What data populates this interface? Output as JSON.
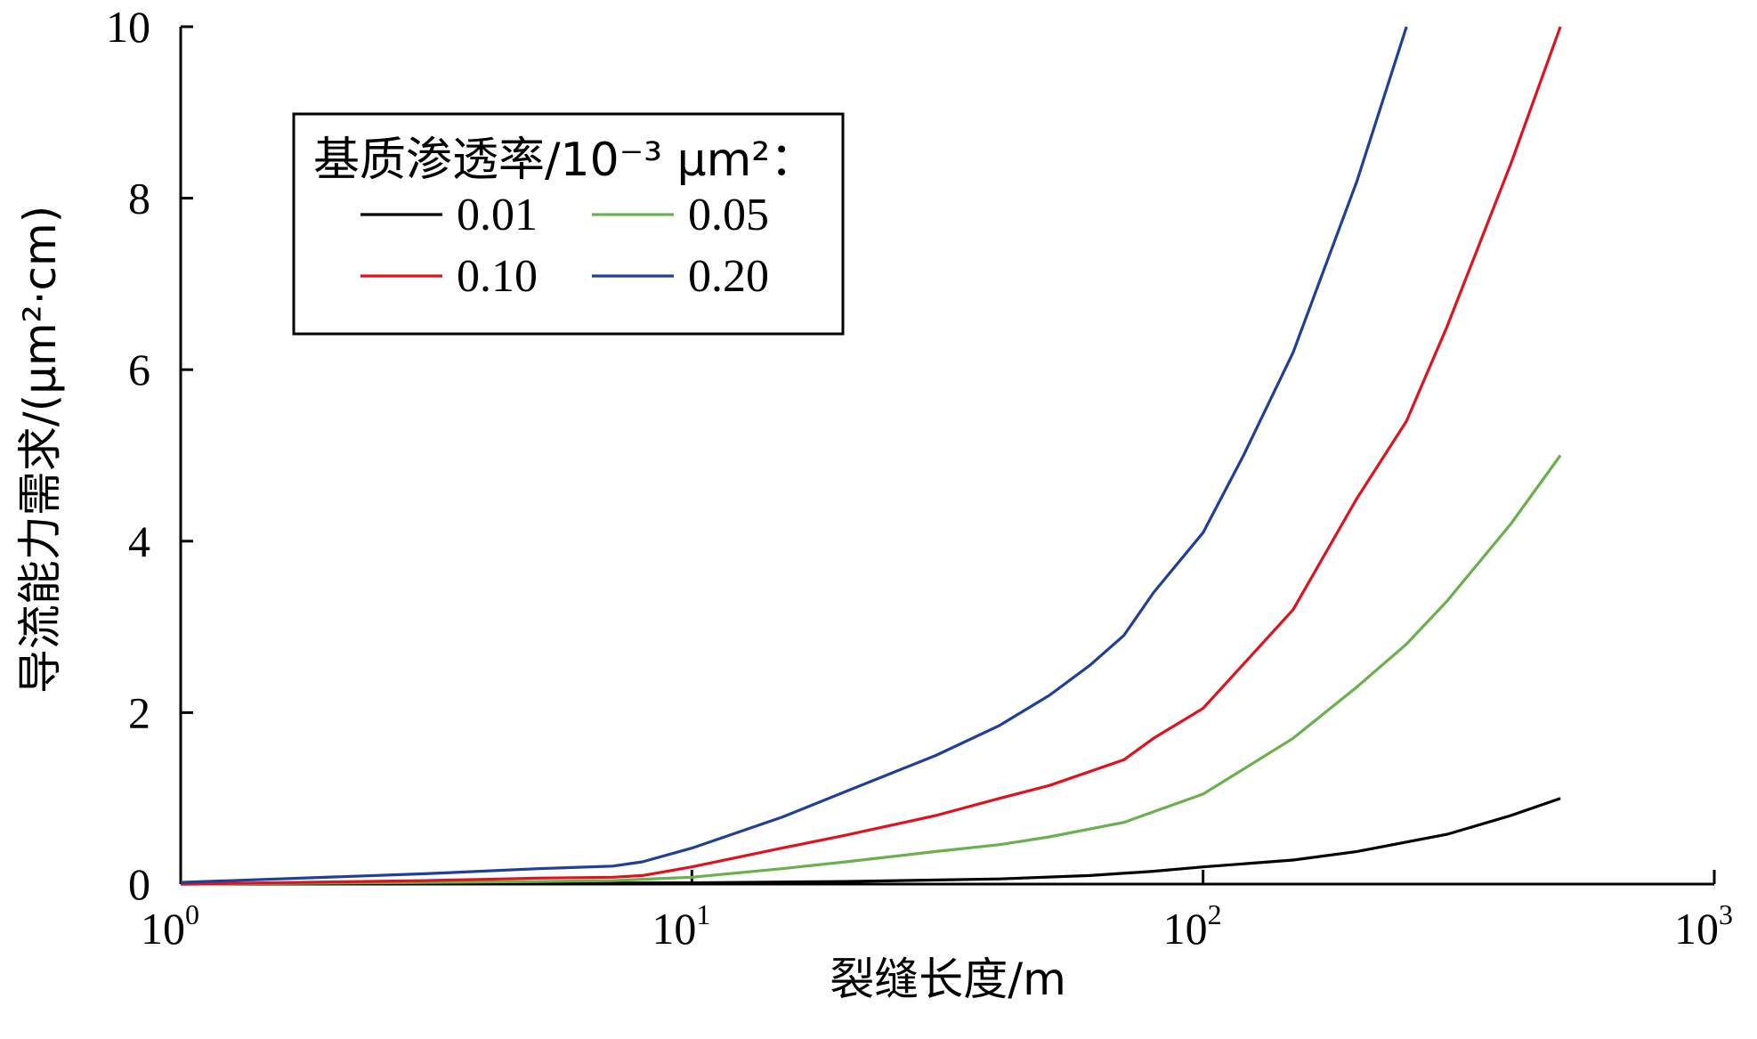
{
  "chart_data": {
    "type": "line",
    "xscale": "log",
    "xlim": [
      1,
      1000
    ],
    "ylim": [
      0,
      10
    ],
    "xticks": [
      {
        "base": "10",
        "exp": "0",
        "value": 1
      },
      {
        "base": "10",
        "exp": "1",
        "value": 10
      },
      {
        "base": "10",
        "exp": "2",
        "value": 100
      },
      {
        "base": "10",
        "exp": "3",
        "value": 1000
      }
    ],
    "yticks": [
      "0",
      "2",
      "4",
      "6",
      "8",
      "10"
    ],
    "xlabel": "裂缝长度/m",
    "ylabel": "导流能力需求/(μm²·cm)",
    "grid": false,
    "legend": {
      "placement": "top-left",
      "title": "基质渗透率/10⁻³ μm²："
    },
    "series": [
      {
        "name": "0.01",
        "color": "#000000",
        "points": [
          [
            1,
            0.0
          ],
          [
            5,
            0.01
          ],
          [
            10,
            0.015
          ],
          [
            20,
            0.03
          ],
          [
            40,
            0.06
          ],
          [
            60,
            0.1
          ],
          [
            80,
            0.15
          ],
          [
            100,
            0.2
          ],
          [
            150,
            0.28
          ],
          [
            200,
            0.38
          ],
          [
            300,
            0.58
          ],
          [
            400,
            0.8
          ],
          [
            500,
            1.0
          ]
        ]
      },
      {
        "name": "0.05",
        "color": "#6ab04c",
        "points": [
          [
            1,
            0.0
          ],
          [
            3,
            0.02
          ],
          [
            5,
            0.03
          ],
          [
            7,
            0.04
          ],
          [
            10,
            0.08
          ],
          [
            15,
            0.18
          ],
          [
            20,
            0.26
          ],
          [
            30,
            0.38
          ],
          [
            40,
            0.46
          ],
          [
            50,
            0.55
          ],
          [
            70,
            0.72
          ],
          [
            100,
            1.05
          ],
          [
            150,
            1.7
          ],
          [
            200,
            2.3
          ],
          [
            250,
            2.8
          ],
          [
            300,
            3.3
          ],
          [
            400,
            4.2
          ],
          [
            500,
            5.0
          ]
        ]
      },
      {
        "name": "0.10",
        "color": "#e0121e",
        "points": [
          [
            1,
            0.0
          ],
          [
            3,
            0.04
          ],
          [
            5,
            0.07
          ],
          [
            7,
            0.08
          ],
          [
            8,
            0.1
          ],
          [
            10,
            0.2
          ],
          [
            15,
            0.42
          ],
          [
            20,
            0.57
          ],
          [
            30,
            0.8
          ],
          [
            40,
            1.0
          ],
          [
            50,
            1.15
          ],
          [
            70,
            1.45
          ],
          [
            80,
            1.7
          ],
          [
            100,
            2.05
          ],
          [
            150,
            3.2
          ],
          [
            200,
            4.5
          ],
          [
            250,
            5.4
          ],
          [
            300,
            6.5
          ],
          [
            400,
            8.4
          ],
          [
            500,
            10.0
          ]
        ]
      },
      {
        "name": "0.20",
        "color": "#1f3f99",
        "points": [
          [
            1,
            0.02
          ],
          [
            3,
            0.12
          ],
          [
            5,
            0.18
          ],
          [
            7,
            0.21
          ],
          [
            8,
            0.26
          ],
          [
            10,
            0.42
          ],
          [
            15,
            0.78
          ],
          [
            20,
            1.08
          ],
          [
            30,
            1.5
          ],
          [
            40,
            1.85
          ],
          [
            50,
            2.2
          ],
          [
            60,
            2.55
          ],
          [
            70,
            2.9
          ],
          [
            80,
            3.4
          ],
          [
            100,
            4.1
          ],
          [
            120,
            5.0
          ],
          [
            150,
            6.2
          ],
          [
            200,
            8.2
          ],
          [
            250,
            10.0
          ]
        ]
      }
    ]
  }
}
